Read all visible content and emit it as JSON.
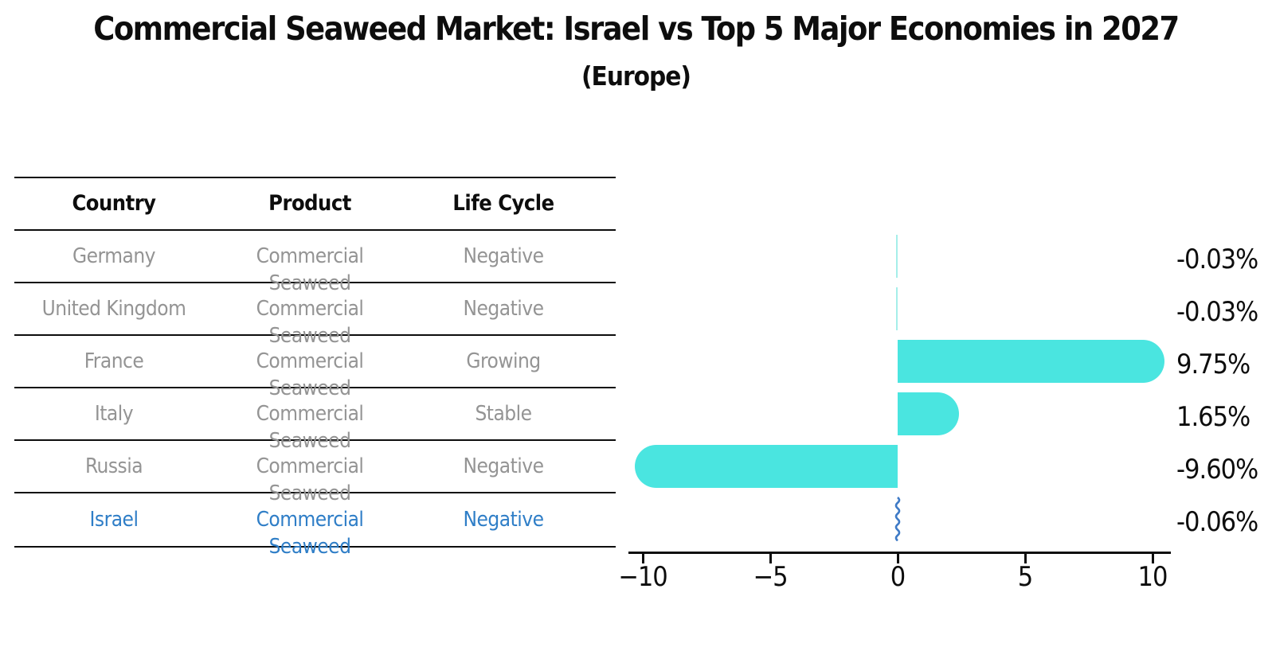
{
  "title": "Commercial Seaweed Market: Israel vs Top 5 Major Economies in 2027",
  "subtitle": "(Europe)",
  "table": {
    "headers": [
      "Country",
      "Product",
      "Life Cycle"
    ],
    "rows": [
      {
        "country": "Germany",
        "product": "Commercial Seaweed",
        "life_cycle": "Negative",
        "highlight": false
      },
      {
        "country": "United Kingdom",
        "product": "Commercial Seaweed",
        "life_cycle": "Negative",
        "highlight": false
      },
      {
        "country": "France",
        "product": "Commercial Seaweed",
        "life_cycle": "Growing",
        "highlight": false
      },
      {
        "country": "Italy",
        "product": "Commercial Seaweed",
        "life_cycle": "Stable",
        "highlight": false
      },
      {
        "country": "Russia",
        "product": "Commercial Seaweed",
        "life_cycle": "Negative",
        "highlight": false
      },
      {
        "country": "Israel",
        "product": "Commercial Seaweed",
        "life_cycle": "Negative",
        "highlight": true
      }
    ]
  },
  "chart_data": {
    "type": "bar",
    "orientation": "horizontal",
    "title": "Commercial Seaweed Market: Israel vs Top 5 Major Economies in 2027 (Europe)",
    "categories": [
      "Germany",
      "United Kingdom",
      "France",
      "Italy",
      "Russia",
      "Israel"
    ],
    "values": [
      -0.03,
      -0.03,
      9.75,
      1.65,
      -9.6,
      -0.06
    ],
    "labels": [
      "-0.03%",
      "-0.03%",
      "9.75%",
      "1.65%",
      "-9.60%",
      "-0.06%"
    ],
    "x_ticks": [
      -10,
      -5,
      0,
      5,
      10
    ],
    "x_tick_labels": [
      "−10",
      "−5",
      "0",
      "5",
      "10"
    ],
    "xlim": [
      -10.6,
      10.8
    ],
    "grid": false,
    "legend": false,
    "bar_color": "#4ae5e0",
    "thin_bar_color": "#a5efea",
    "highlight_bar_color": "#3e7ac6",
    "highlight_text_color": "#2f7ec7",
    "highlight_index": 5
  }
}
